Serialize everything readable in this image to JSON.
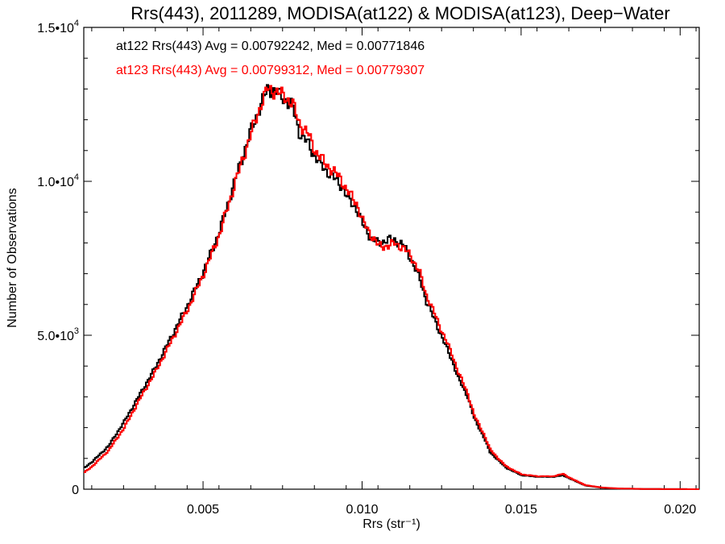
{
  "chart_data": {
    "type": "line",
    "title": "Rrs(443), 2011289, MODISA(at122) & MODISA(at123), Deep−Water",
    "xlabel": "Rrs (str⁻¹)",
    "ylabel": "Number of Observations",
    "xlim": [
      0.00125,
      0.0206
    ],
    "ylim": [
      0,
      15000
    ],
    "x_ticks": [
      0.005,
      0.01,
      0.015,
      0.02
    ],
    "x_tick_labels": [
      "0.005",
      "0.010",
      "0.015",
      "0.020"
    ],
    "y_tick_labels": [
      {
        "value": 0,
        "base": "0",
        "exp": ""
      },
      {
        "value": 5000,
        "base": "5.0•10",
        "exp": "3"
      },
      {
        "value": 10000,
        "base": "1.0•10",
        "exp": "4"
      },
      {
        "value": 15000,
        "base": "1.5•10",
        "exp": "4"
      }
    ],
    "grid": false,
    "annotations": [
      "at122 Rrs(443) Avg = 0.00792242, Med = 0.00771846",
      "at123 Rrs(443) Avg = 0.00799312, Med = 0.00779307"
    ],
    "colors": {
      "at122": "#000000",
      "at123": "#ff0000"
    },
    "series": [
      {
        "id": "at122",
        "x": [
          0.00125,
          0.0015,
          0.002,
          0.0025,
          0.003,
          0.0035,
          0.004,
          0.0045,
          0.005,
          0.0055,
          0.006,
          0.0065,
          0.0068,
          0.007,
          0.0073,
          0.0075,
          0.0078,
          0.008,
          0.0083,
          0.0085,
          0.0088,
          0.009,
          0.0093,
          0.0095,
          0.0098,
          0.01,
          0.0103,
          0.0105,
          0.0108,
          0.011,
          0.0113,
          0.0115,
          0.0118,
          0.012,
          0.0123,
          0.0125,
          0.0128,
          0.013,
          0.0133,
          0.0135,
          0.0138,
          0.014,
          0.0143,
          0.0145,
          0.0148,
          0.015,
          0.0155,
          0.016,
          0.0163,
          0.0165,
          0.017,
          0.0175,
          0.018,
          0.019,
          0.0206
        ],
        "values": [
          700,
          900,
          1400,
          2200,
          3100,
          4000,
          5000,
          6000,
          7100,
          8400,
          10100,
          11700,
          12500,
          13000,
          12900,
          12700,
          12400,
          11600,
          11200,
          10800,
          10400,
          10200,
          9900,
          9500,
          9100,
          8600,
          8100,
          8000,
          8100,
          8100,
          7900,
          7500,
          6800,
          6100,
          5400,
          4900,
          4200,
          3600,
          3000,
          2300,
          1700,
          1200,
          900,
          700,
          550,
          450,
          400,
          400,
          450,
          350,
          120,
          50,
          20,
          5,
          0
        ]
      },
      {
        "id": "at123",
        "x": [
          0.00125,
          0.0015,
          0.002,
          0.0025,
          0.003,
          0.0035,
          0.004,
          0.0045,
          0.005,
          0.0055,
          0.006,
          0.0065,
          0.0068,
          0.007,
          0.0073,
          0.0075,
          0.0078,
          0.008,
          0.0083,
          0.0085,
          0.0088,
          0.009,
          0.0093,
          0.0095,
          0.0098,
          0.01,
          0.0103,
          0.0105,
          0.0108,
          0.011,
          0.0113,
          0.0115,
          0.0118,
          0.012,
          0.0123,
          0.0125,
          0.0128,
          0.013,
          0.0133,
          0.0135,
          0.0138,
          0.014,
          0.0143,
          0.0145,
          0.0148,
          0.015,
          0.0155,
          0.016,
          0.0163,
          0.0165,
          0.017,
          0.0175,
          0.018,
          0.019,
          0.0206
        ],
        "values": [
          550,
          750,
          1250,
          2000,
          2950,
          3850,
          4850,
          5850,
          7000,
          8300,
          10000,
          11600,
          12500,
          13000,
          12900,
          12800,
          12500,
          11900,
          11500,
          11000,
          10600,
          10400,
          10100,
          9700,
          9300,
          8700,
          8200,
          7900,
          7900,
          8000,
          7800,
          7600,
          7000,
          6300,
          5600,
          5100,
          4400,
          3800,
          3100,
          2400,
          1800,
          1300,
          950,
          750,
          580,
          480,
          420,
          420,
          500,
          370,
          130,
          55,
          25,
          5,
          0
        ]
      }
    ]
  }
}
